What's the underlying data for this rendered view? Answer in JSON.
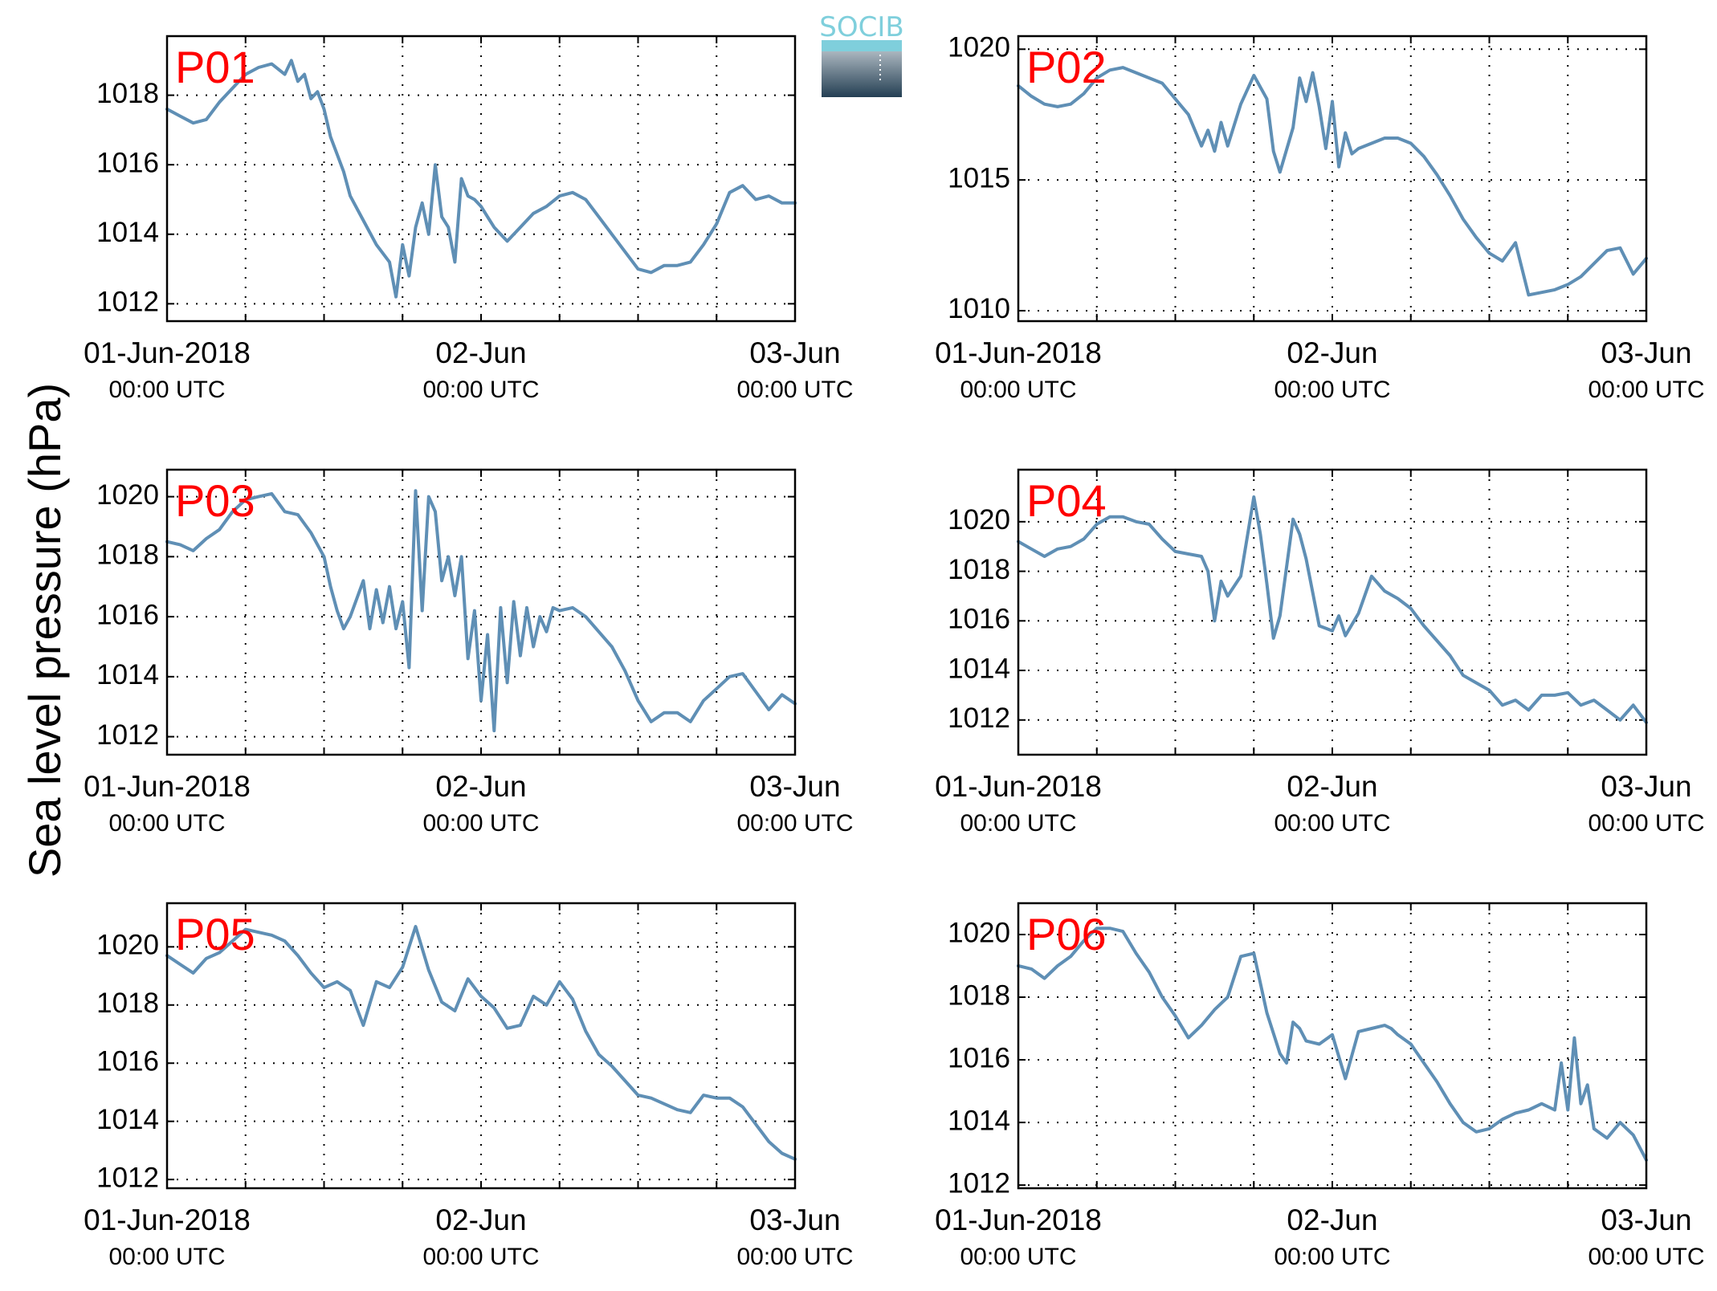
{
  "figure": {
    "ylabel": "Sea level pressure (hPa)",
    "logo_text": "SOCIB",
    "colors": {
      "line": "#5f8fb5",
      "panel_label": "#ff0000",
      "logo_top": "#7fcfdc",
      "logo_bottom": "#243f53"
    }
  },
  "chart_data": [
    {
      "type": "line",
      "panel_label": "P01",
      "x_range": [
        "01-Jun-2018 00:00 UTC",
        "03-Jun-2018 00:00 UTC"
      ],
      "ylim": [
        1011.5,
        1019.7
      ],
      "yticks": [
        "1012",
        "1014",
        "1016",
        "1018"
      ],
      "ytick_values": [
        1012,
        1014,
        1016,
        1018
      ],
      "xticks": [
        {
          "label": "01-Jun-2018",
          "sub": "00:00 UTC"
        },
        {
          "label": "02-Jun",
          "sub": "00:00 UTC"
        },
        {
          "label": "03-Jun",
          "sub": "00:00 UTC"
        }
      ],
      "grid": true,
      "series": [
        {
          "x_hours": [
            0,
            1,
            2,
            3,
            4,
            5,
            6,
            7,
            8,
            9,
            9.5,
            10,
            10.5,
            11,
            11.5,
            12,
            12.5,
            13,
            13.5,
            14,
            15,
            16,
            17,
            17.5,
            18,
            18.5,
            19,
            19.5,
            20,
            20.5,
            21,
            21.5,
            22,
            22.5,
            23,
            23.5,
            24,
            24.5,
            25,
            26,
            27,
            28,
            29,
            30,
            31,
            32,
            33,
            34,
            35,
            36,
            37,
            38,
            39,
            40,
            41,
            42,
            43,
            44,
            45,
            46,
            47,
            48
          ],
          "y": [
            1017.6,
            1017.4,
            1017.2,
            1017.3,
            1017.8,
            1018.2,
            1018.6,
            1018.8,
            1018.9,
            1018.6,
            1019.0,
            1018.4,
            1018.6,
            1017.9,
            1018.1,
            1017.6,
            1016.8,
            1016.3,
            1015.8,
            1015.1,
            1014.4,
            1013.7,
            1013.2,
            1012.2,
            1013.7,
            1012.8,
            1014.2,
            1014.9,
            1014.0,
            1016.0,
            1014.5,
            1014.2,
            1013.2,
            1015.6,
            1015.1,
            1015.0,
            1014.8,
            1014.5,
            1014.2,
            1013.8,
            1014.2,
            1014.6,
            1014.8,
            1015.1,
            1015.2,
            1015.0,
            1014.5,
            1014.0,
            1013.5,
            1013.0,
            1012.9,
            1013.1,
            1013.1,
            1013.2,
            1013.7,
            1014.3,
            1015.2,
            1015.4,
            1015.0,
            1015.1,
            1014.9,
            1014.9
          ]
        }
      ]
    },
    {
      "type": "line",
      "panel_label": "P02",
      "x_range": [
        "01-Jun-2018 00:00 UTC",
        "03-Jun-2018 00:00 UTC"
      ],
      "ylim": [
        1009.6,
        1020.5
      ],
      "yticks": [
        "1010",
        "1015",
        "1020"
      ],
      "ytick_values": [
        1010,
        1015,
        1020
      ],
      "xticks": [
        {
          "label": "01-Jun-2018",
          "sub": "00:00 UTC"
        },
        {
          "label": "02-Jun",
          "sub": "00:00 UTC"
        },
        {
          "label": "03-Jun",
          "sub": "00:00 UTC"
        }
      ],
      "grid": true,
      "series": [
        {
          "x_hours": [
            0,
            1,
            2,
            3,
            4,
            5,
            6,
            7,
            8,
            9,
            10,
            11,
            12,
            13,
            14,
            14.5,
            15,
            15.5,
            16,
            17,
            18,
            19,
            19.5,
            20,
            21,
            21.5,
            22,
            22.5,
            23,
            23.5,
            24,
            24.5,
            25,
            25.5,
            26,
            27,
            28,
            29,
            30,
            31,
            32,
            33,
            34,
            35,
            36,
            37,
            38,
            39,
            40,
            41,
            42,
            43,
            44,
            45,
            46,
            47,
            48
          ],
          "y": [
            1018.6,
            1018.2,
            1017.9,
            1017.8,
            1017.9,
            1018.3,
            1018.9,
            1019.2,
            1019.3,
            1019.1,
            1018.9,
            1018.7,
            1018.1,
            1017.5,
            1016.3,
            1016.9,
            1016.1,
            1017.2,
            1016.3,
            1017.9,
            1019.0,
            1018.1,
            1016.1,
            1015.3,
            1017.0,
            1018.9,
            1018.0,
            1019.1,
            1017.8,
            1016.2,
            1018.0,
            1015.5,
            1016.8,
            1016.0,
            1016.2,
            1016.4,
            1016.6,
            1016.6,
            1016.4,
            1015.9,
            1015.2,
            1014.4,
            1013.5,
            1012.8,
            1012.2,
            1011.9,
            1012.6,
            1010.6,
            1010.7,
            1010.8,
            1011.0,
            1011.3,
            1011.8,
            1012.3,
            1012.4,
            1011.4,
            1012.0
          ]
        }
      ]
    },
    {
      "type": "line",
      "panel_label": "P03",
      "x_range": [
        "01-Jun-2018 00:00 UTC",
        "03-Jun-2018 00:00 UTC"
      ],
      "ylim": [
        1011.4,
        1020.9
      ],
      "yticks": [
        "1012",
        "1014",
        "1016",
        "1018",
        "1020"
      ],
      "ytick_values": [
        1012,
        1014,
        1016,
        1018,
        1020
      ],
      "xticks": [
        {
          "label": "01-Jun-2018",
          "sub": "00:00 UTC"
        },
        {
          "label": "02-Jun",
          "sub": "00:00 UTC"
        },
        {
          "label": "03-Jun",
          "sub": "00:00 UTC"
        }
      ],
      "grid": true,
      "series": [
        {
          "x_hours": [
            0,
            1,
            2,
            3,
            4,
            5,
            6,
            7,
            8,
            9,
            10,
            11,
            12,
            12.5,
            13,
            13.5,
            14,
            15,
            15.5,
            16,
            16.5,
            17,
            17.5,
            18,
            18.5,
            19,
            19.5,
            20,
            20.5,
            21,
            21.5,
            22,
            22.5,
            23,
            23.5,
            24,
            24.5,
            25,
            25.5,
            26,
            26.5,
            27,
            27.5,
            28,
            28.5,
            29,
            29.5,
            30,
            31,
            32,
            33,
            34,
            35,
            36,
            37,
            38,
            39,
            40,
            41,
            42,
            43,
            44,
            45,
            46,
            47,
            48
          ],
          "y": [
            1018.5,
            1018.4,
            1018.2,
            1018.6,
            1018.9,
            1019.5,
            1019.9,
            1020.0,
            1020.1,
            1019.5,
            1019.4,
            1018.8,
            1018.0,
            1017.0,
            1016.2,
            1015.6,
            1016.0,
            1017.2,
            1015.6,
            1016.9,
            1015.8,
            1017.0,
            1015.6,
            1016.5,
            1014.3,
            1020.2,
            1016.2,
            1020.0,
            1019.5,
            1017.2,
            1018.0,
            1016.7,
            1018.0,
            1014.6,
            1016.2,
            1013.2,
            1015.4,
            1012.2,
            1016.3,
            1013.8,
            1016.5,
            1014.7,
            1016.3,
            1015.0,
            1016.0,
            1015.5,
            1016.3,
            1016.2,
            1016.3,
            1016.0,
            1015.5,
            1015.0,
            1014.2,
            1013.2,
            1012.5,
            1012.8,
            1012.8,
            1012.5,
            1013.2,
            1013.6,
            1014.0,
            1014.1,
            1013.5,
            1012.9,
            1013.4,
            1013.1
          ]
        }
      ]
    },
    {
      "type": "line",
      "panel_label": "P04",
      "x_range": [
        "01-Jun-2018 00:00 UTC",
        "03-Jun-2018 00:00 UTC"
      ],
      "ylim": [
        1010.6,
        1022.1
      ],
      "yticks": [
        "1012",
        "1014",
        "1016",
        "1018",
        "1020"
      ],
      "ytick_values": [
        1012,
        1014,
        1016,
        1018,
        1020
      ],
      "xticks": [
        {
          "label": "01-Jun-2018",
          "sub": "00:00 UTC"
        },
        {
          "label": "02-Jun",
          "sub": "00:00 UTC"
        },
        {
          "label": "03-Jun",
          "sub": "00:00 UTC"
        }
      ],
      "grid": true,
      "series": [
        {
          "x_hours": [
            0,
            1,
            2,
            3,
            4,
            5,
            6,
            7,
            8,
            9,
            10,
            11,
            12,
            13,
            14,
            14.5,
            15,
            15.5,
            16,
            17,
            18,
            18.5,
            19,
            19.5,
            20,
            21,
            21.5,
            22,
            23,
            24,
            24.5,
            25,
            26,
            27,
            28,
            29,
            30,
            31,
            32,
            33,
            34,
            35,
            36,
            37,
            38,
            39,
            40,
            41,
            42,
            43,
            44,
            45,
            46,
            47,
            48
          ],
          "y": [
            1019.2,
            1018.9,
            1018.6,
            1018.9,
            1019.0,
            1019.3,
            1019.9,
            1020.2,
            1020.2,
            1020.0,
            1019.9,
            1019.3,
            1018.8,
            1018.7,
            1018.6,
            1018.0,
            1016.0,
            1017.6,
            1017.0,
            1017.8,
            1021.0,
            1019.5,
            1017.5,
            1015.3,
            1016.2,
            1020.1,
            1019.5,
            1018.5,
            1015.8,
            1015.6,
            1016.2,
            1015.4,
            1016.3,
            1017.8,
            1017.2,
            1016.9,
            1016.5,
            1015.8,
            1015.2,
            1014.6,
            1013.8,
            1013.5,
            1013.2,
            1012.6,
            1012.8,
            1012.4,
            1013.0,
            1013.0,
            1013.1,
            1012.6,
            1012.8,
            1012.4,
            1012.0,
            1012.6,
            1011.9
          ]
        }
      ]
    },
    {
      "type": "line",
      "panel_label": "P05",
      "x_range": [
        "01-Jun-2018 00:00 UTC",
        "03-Jun-2018 00:00 UTC"
      ],
      "ylim": [
        1011.7,
        1021.5
      ],
      "yticks": [
        "1012",
        "1014",
        "1016",
        "1018",
        "1020"
      ],
      "ytick_values": [
        1012,
        1014,
        1016,
        1018,
        1020
      ],
      "xticks": [
        {
          "label": "01-Jun-2018",
          "sub": "00:00 UTC"
        },
        {
          "label": "02-Jun",
          "sub": "00:00 UTC"
        },
        {
          "label": "03-Jun",
          "sub": "00:00 UTC"
        }
      ],
      "grid": true,
      "series": [
        {
          "x_hours": [
            0,
            1,
            2,
            3,
            4,
            5,
            6,
            7,
            8,
            9,
            10,
            11,
            12,
            13,
            14,
            15,
            16,
            17,
            18,
            19,
            20,
            21,
            22,
            23,
            24,
            25,
            26,
            27,
            28,
            29,
            30,
            31,
            32,
            33,
            34,
            35,
            36,
            37,
            38,
            39,
            40,
            41,
            42,
            43,
            44,
            45,
            46,
            47,
            48
          ],
          "y": [
            1019.7,
            1019.4,
            1019.1,
            1019.6,
            1019.8,
            1020.2,
            1020.6,
            1020.5,
            1020.4,
            1020.2,
            1019.7,
            1019.1,
            1018.6,
            1018.8,
            1018.5,
            1017.3,
            1018.8,
            1018.6,
            1019.3,
            1020.7,
            1019.2,
            1018.1,
            1017.8,
            1018.9,
            1018.3,
            1017.9,
            1017.2,
            1017.3,
            1018.3,
            1018.0,
            1018.8,
            1018.2,
            1017.1,
            1016.3,
            1015.9,
            1015.4,
            1014.9,
            1014.8,
            1014.6,
            1014.4,
            1014.3,
            1014.9,
            1014.8,
            1014.8,
            1014.5,
            1013.9,
            1013.3,
            1012.9,
            1012.7
          ]
        }
      ]
    },
    {
      "type": "line",
      "panel_label": "P06",
      "x_range": [
        "01-Jun-2018 00:00 UTC",
        "03-Jun-2018 00:00 UTC"
      ],
      "ylim": [
        1011.9,
        1021.0
      ],
      "yticks": [
        "1012",
        "1014",
        "1016",
        "1018",
        "1020"
      ],
      "ytick_values": [
        1012,
        1014,
        1016,
        1018,
        1020
      ],
      "xticks": [
        {
          "label": "01-Jun-2018",
          "sub": "00:00 UTC"
        },
        {
          "label": "02-Jun",
          "sub": "00:00 UTC"
        },
        {
          "label": "03-Jun",
          "sub": "00:00 UTC"
        }
      ],
      "grid": true,
      "series": [
        {
          "x_hours": [
            0,
            1,
            2,
            3,
            4,
            5,
            6,
            7,
            8,
            9,
            10,
            11,
            12,
            13,
            14,
            15,
            16,
            17,
            18,
            19,
            20,
            20.5,
            21,
            21.5,
            22,
            23,
            24,
            25,
            26,
            27,
            28,
            28.5,
            29,
            30,
            31,
            32,
            33,
            34,
            35,
            36,
            37,
            38,
            39,
            40,
            41,
            41.5,
            42,
            42.5,
            43,
            43.5,
            44,
            45,
            46,
            47,
            48
          ],
          "y": [
            1019.0,
            1018.9,
            1018.6,
            1019.0,
            1019.3,
            1019.8,
            1020.2,
            1020.2,
            1020.1,
            1019.4,
            1018.8,
            1018.0,
            1017.4,
            1016.7,
            1017.1,
            1017.6,
            1018.0,
            1019.3,
            1019.4,
            1017.5,
            1016.2,
            1015.9,
            1017.2,
            1017.0,
            1016.6,
            1016.5,
            1016.8,
            1015.4,
            1016.9,
            1017.0,
            1017.1,
            1017.0,
            1016.8,
            1016.5,
            1015.9,
            1015.3,
            1014.6,
            1014.0,
            1013.7,
            1013.8,
            1014.1,
            1014.3,
            1014.4,
            1014.6,
            1014.4,
            1015.9,
            1014.4,
            1016.7,
            1014.6,
            1015.2,
            1013.8,
            1013.5,
            1014.0,
            1013.6,
            1012.8
          ]
        }
      ]
    }
  ]
}
